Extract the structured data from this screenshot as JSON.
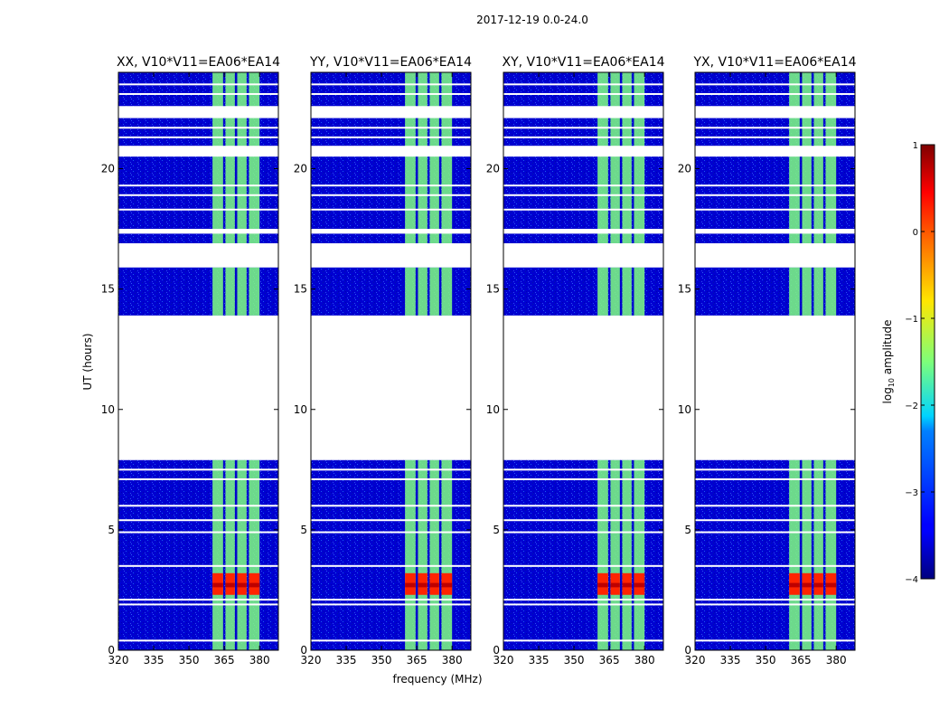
{
  "figure_title": "2017-12-19 0.0-24.0",
  "xlabel": "frequency (MHz)",
  "ylabel": "UT (hours)",
  "colorbar": {
    "label_main": "log",
    "label_sub": "10",
    "label_rest": " amplitude",
    "ticks": [
      {
        "value": 1,
        "label": "1"
      },
      {
        "value": 0,
        "label": "0"
      },
      {
        "value": -1,
        "label": "−1"
      },
      {
        "value": -2,
        "label": "−2"
      },
      {
        "value": -3,
        "label": "−3"
      },
      {
        "value": -4,
        "label": "−4"
      }
    ],
    "range": [
      -4,
      1
    ]
  },
  "chart_data": {
    "type": "heatmap",
    "title": "2017-12-19 0.0-24.0",
    "xlabel": "frequency (MHz)",
    "ylabel": "UT (hours)",
    "xlim": [
      320,
      388
    ],
    "ylim": [
      0,
      24
    ],
    "xticks": [
      320,
      335,
      350,
      365,
      380
    ],
    "yticks": [
      0,
      5,
      10,
      15,
      20
    ],
    "colormap": "jet",
    "value_range": [
      -4,
      1
    ],
    "panels": [
      {
        "title": "XX, V10*V11=EA06*EA14"
      },
      {
        "title": "YY, V10*V11=EA06*EA14"
      },
      {
        "title": "XY, V10*V11=EA06*EA14"
      },
      {
        "title": "YX, V10*V11=EA06*EA14"
      }
    ],
    "data_blocks_ut": [
      [
        0,
        7.9
      ],
      [
        13.9,
        15.9
      ],
      [
        16.9,
        24
      ]
    ],
    "gaps_ut": [
      [
        7.9,
        13.9
      ],
      [
        15.9,
        16.9
      ],
      [
        17.3,
        17.5
      ],
      [
        20.5,
        20.95
      ],
      [
        22.1,
        22.6
      ]
    ],
    "bright_channels_mhz": [
      [
        360,
        364.5
      ],
      [
        365.5,
        369.5
      ],
      [
        370.5,
        374.5
      ],
      [
        375.5,
        380
      ]
    ],
    "bright_channel_level": -1.5,
    "background_level": -3.6,
    "strong_rfi_ut": [
      2.3,
      3.2
    ],
    "strong_rfi_level": 0.2
  }
}
